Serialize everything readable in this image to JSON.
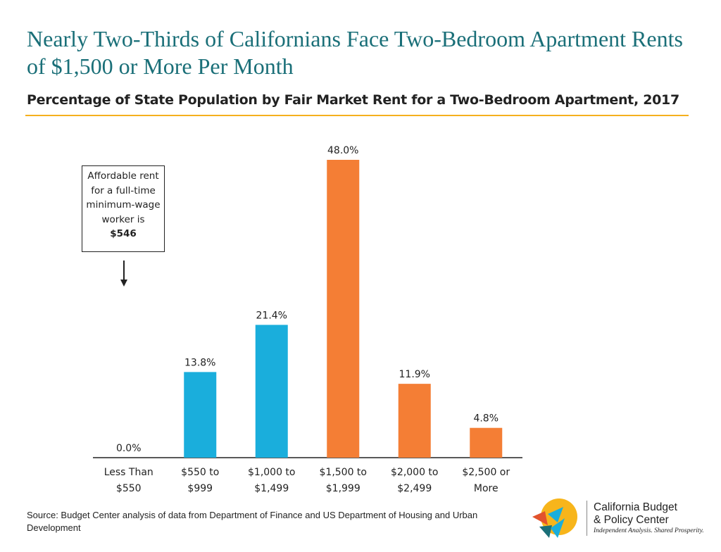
{
  "header": {
    "title": "Nearly Two-Thirds of Californians Face Two-Bedroom Apartment Rents of $1,500 or More Per Month",
    "subtitle": "Percentage of State Population by Fair Market Rent for a Two-Bedroom Apartment, 2017"
  },
  "callout": {
    "lines": [
      "Affordable rent",
      "for a full-time",
      "minimum-wage",
      "worker is"
    ],
    "amount": "$546"
  },
  "chart_data": {
    "type": "bar",
    "title": "Percentage of State Population by Fair Market Rent for a Two-Bedroom Apartment, 2017",
    "xlabel": "",
    "ylabel": "",
    "categories": [
      [
        "Less Than",
        "$550"
      ],
      [
        "$550 to",
        "$999"
      ],
      [
        "$1,000 to",
        "$1,499"
      ],
      [
        "$1,500 to",
        "$1,999"
      ],
      [
        "$2,000 to",
        "$2,499"
      ],
      [
        "$2,500 or",
        "More"
      ]
    ],
    "values": [
      0.0,
      13.8,
      21.4,
      48.0,
      11.9,
      4.8
    ],
    "labels": [
      "0.0%",
      "13.8%",
      "21.4%",
      "48.0%",
      "11.9%",
      "4.8%"
    ],
    "colors": [
      "#1aaedc",
      "#1aaedc",
      "#1aaedc",
      "#f47e35",
      "#f47e35",
      "#f47e35"
    ],
    "ylim": [
      0,
      48
    ],
    "grid": false,
    "axis_color": "#222222"
  },
  "footer": {
    "source": "Source: Budget Center analysis of data from Department of Finance and US Department of Housing and Urban Development",
    "org_name_line1": "California Budget",
    "org_name_line2": "& Policy Center",
    "tagline": "Independent Analysis. Shared Prosperity."
  },
  "logo": {
    "icon": "cbpc-logo-icon",
    "colors": [
      "#f7b51b",
      "#e2532d",
      "#1aaedc",
      "#1a6f78"
    ]
  }
}
